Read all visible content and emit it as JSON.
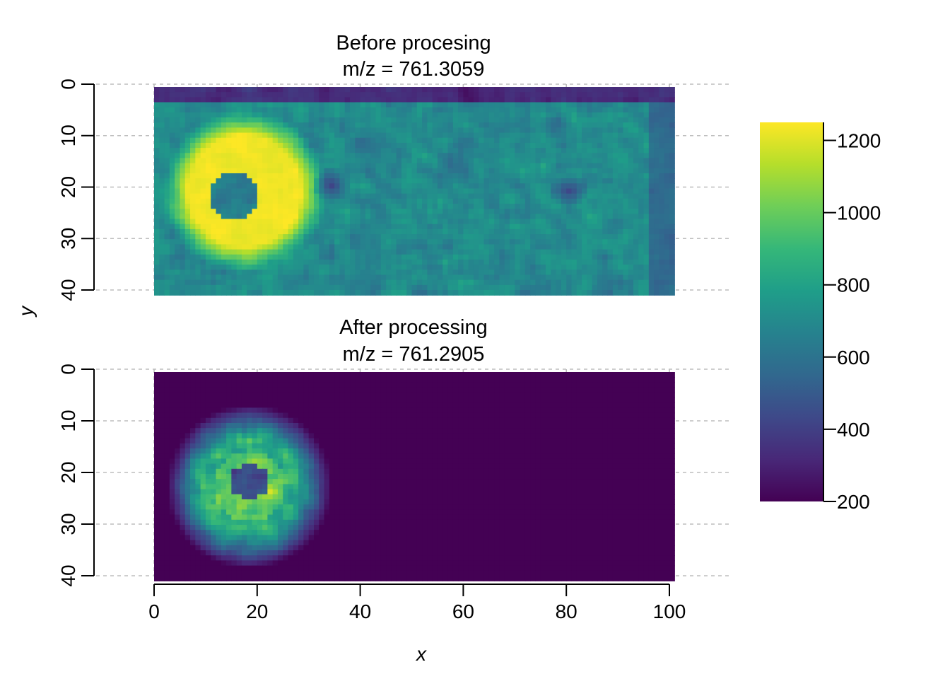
{
  "chart_data": {
    "type": "heatmap",
    "xlabel": "x",
    "ylabel": "y",
    "xlim": [
      0,
      100
    ],
    "ylim": [
      40,
      0
    ],
    "x_ticks": [
      "0",
      "20",
      "40",
      "60",
      "80",
      "100"
    ],
    "y_ticks": [
      "0",
      "10",
      "20",
      "30",
      "40"
    ],
    "grid": true,
    "colormap": "viridis",
    "colorbar": {
      "min": 200,
      "max": 1250,
      "ticks": [
        "200",
        "400",
        "600",
        "800",
        "1000",
        "1200"
      ],
      "placement": "right"
    },
    "panels": [
      {
        "title_line1": "Before procesing",
        "title_line2": "m/z = 761.3059",
        "intensity_range": [
          200,
          1250
        ],
        "features": {
          "bright_region": {
            "center_x": 17,
            "center_y": 20,
            "radius": 16,
            "peak": 1230
          },
          "ring_hole": {
            "center_x": 15,
            "center_y": 21,
            "radius": 4.5,
            "value": 650
          },
          "dark_spots": [
            {
              "x": 34,
              "y": 19,
              "value": 420
            },
            {
              "x": 80,
              "y": 20,
              "value": 430
            }
          ],
          "background": 700,
          "top_band": {
            "rows": "0-2",
            "value": 330
          }
        }
      },
      {
        "title_line1": "After processing",
        "title_line2": "m/z = 761.2905",
        "intensity_range": [
          200,
          1250
        ],
        "features": {
          "bright_region": {
            "center_x": 18,
            "center_y": 22,
            "radius": 16,
            "peak": 1120
          },
          "ring_hole": {
            "center_x": 18,
            "center_y": 21,
            "radius": 4,
            "value": 450
          },
          "background": 200,
          "cutoff_x": 38
        }
      }
    ]
  },
  "colors": {
    "viridis_stops": [
      "#440154",
      "#482878",
      "#3e4989",
      "#31688e",
      "#26828e",
      "#1f9e89",
      "#35b779",
      "#6ece58",
      "#b5de2b",
      "#fde725"
    ]
  }
}
